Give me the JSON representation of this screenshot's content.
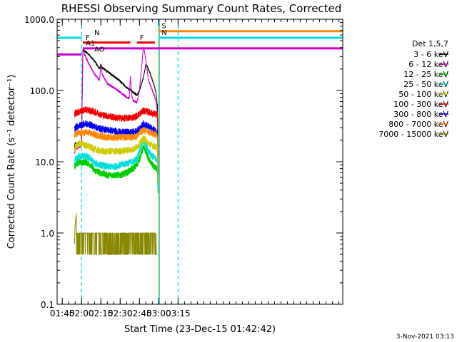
{
  "chart_data": {
    "type": "line",
    "title": "RHESSI Observing Summary Count Rates, Corrected",
    "xlabel": "Start Time (23-Dec-15 01:42:42)",
    "ylabel": "Corrected Count Rate (s⁻¹ detector⁻¹)",
    "yscale": "log",
    "ylim": [
      0.1,
      1000
    ],
    "xlim_minutes": [
      101,
      323
    ],
    "x_ticks": [
      {
        "label": "01:45",
        "t": 105
      },
      {
        "label": "02:00",
        "t": 120
      },
      {
        "label": "02:15",
        "t": 135
      },
      {
        "label": "02:30",
        "t": 150
      },
      {
        "label": "02:45",
        "t": 165
      },
      {
        "label": "03:00",
        "t": 180
      },
      {
        "label": "03:15",
        "t": 195
      }
    ],
    "y_ticks": [
      {
        "label": "0.1",
        "v": 0.1
      },
      {
        "label": "1.0",
        "v": 1
      },
      {
        "label": "10.0",
        "v": 10
      },
      {
        "label": "100.0",
        "v": 100
      },
      {
        "label": "1000.0",
        "v": 1000
      }
    ],
    "legend_title": "Det 1,5,7",
    "legend_position": "right",
    "series": [
      {
        "name": "3 - 6 keV",
        "color": "#000000",
        "x": [
          114.5,
          115,
          120,
          121,
          122,
          125,
          130,
          134,
          135,
          136,
          140,
          145,
          150,
          155,
          160,
          163,
          165,
          168,
          170,
          171,
          173,
          175,
          177,
          178,
          179,
          179.5
        ],
        "y": [
          16,
          18,
          18,
          380,
          360,
          330,
          260,
          200,
          230,
          210,
          185,
          160,
          135,
          110,
          95,
          85,
          100,
          150,
          230,
          220,
          180,
          140,
          110,
          90,
          60,
          5
        ]
      },
      {
        "name": "6 - 12 keV",
        "color": "#cc00cc",
        "x": [
          114.5,
          115,
          120,
          121,
          122,
          125,
          130,
          134,
          135,
          136,
          140,
          145,
          150,
          155,
          157,
          158,
          159,
          160,
          163,
          165,
          167,
          168,
          169,
          170,
          172,
          175,
          177,
          178,
          179,
          179.5
        ],
        "y": [
          13,
          15,
          17,
          370,
          330,
          250,
          170,
          140,
          220,
          170,
          125,
          110,
          95,
          80,
          78,
          160,
          85,
          72,
          68,
          100,
          250,
          400,
          350,
          260,
          140,
          100,
          80,
          65,
          45,
          4
        ]
      },
      {
        "name": "12 - 25 keV",
        "color": "#00cc00",
        "x": [
          114.5,
          115,
          118,
          120,
          123,
          127,
          130,
          135,
          140,
          145,
          150,
          155,
          160,
          163,
          165,
          167,
          168,
          170,
          172,
          175,
          178,
          179,
          179.5
        ],
        "y": [
          8,
          9,
          10,
          9.5,
          10,
          9,
          7.5,
          7,
          6.5,
          6.5,
          6.5,
          7,
          8,
          9,
          11,
          14,
          16,
          14,
          11,
          9,
          8,
          7.5,
          3
        ]
      },
      {
        "name": "25 - 50 keV",
        "color": "#00dddd",
        "x": [
          114.5,
          115,
          118,
          120,
          123,
          127,
          130,
          135,
          140,
          145,
          150,
          155,
          160,
          163,
          165,
          167,
          168,
          170,
          172,
          175,
          178,
          179,
          179.5
        ],
        "y": [
          9,
          10.5,
          12,
          12,
          12,
          11,
          9.5,
          9,
          8.5,
          8.5,
          9,
          9.5,
          10,
          11,
          14,
          18,
          20,
          17,
          14,
          12,
          11,
          10,
          4
        ]
      },
      {
        "name": "50 - 100 keV",
        "color": "#cccc00",
        "x": [
          114.5,
          115,
          118,
          120,
          123,
          127,
          130,
          135,
          140,
          145,
          150,
          155,
          160,
          163,
          165,
          167,
          168,
          170,
          172,
          175,
          178,
          179,
          179.5
        ],
        "y": [
          15,
          16,
          18,
          18,
          17,
          16,
          15,
          14,
          14,
          14,
          14,
          14.5,
          15,
          16,
          18,
          20,
          21,
          20,
          18,
          17,
          16,
          15,
          5
        ]
      },
      {
        "name": "100 - 300 keV",
        "color": "#ee0000",
        "x": [
          114.5,
          115,
          118,
          120,
          123,
          127,
          130,
          135,
          140,
          145,
          150,
          155,
          160,
          163,
          165,
          167,
          168,
          170,
          172,
          175,
          178,
          179,
          179.5
        ],
        "y": [
          45,
          48,
          50,
          52,
          54,
          52,
          50,
          46,
          44,
          42,
          41,
          41,
          42,
          44,
          47,
          50,
          52,
          51,
          50,
          48,
          46,
          45,
          20
        ]
      },
      {
        "name": "300 - 800 keV",
        "color": "#0000ee",
        "x": [
          114.5,
          115,
          118,
          120,
          123,
          127,
          130,
          135,
          140,
          145,
          150,
          155,
          160,
          163,
          165,
          167,
          168,
          170,
          172,
          175,
          178,
          179,
          179.5
        ],
        "y": [
          28,
          30,
          32,
          33,
          34,
          33,
          31,
          29,
          28,
          27,
          26,
          26,
          26,
          27,
          29,
          32,
          34,
          33,
          31,
          29,
          27,
          26,
          12
        ]
      },
      {
        "name": "800 - 7000 keV",
        "color": "#ff8800",
        "x": [
          114.5,
          115,
          118,
          120,
          123,
          127,
          130,
          135,
          140,
          145,
          150,
          155,
          160,
          163,
          165,
          167,
          168,
          170,
          172,
          175,
          178,
          179,
          179.5
        ],
        "y": [
          23,
          24,
          25,
          25,
          26,
          25,
          24,
          23,
          22,
          22,
          22,
          22,
          22,
          23,
          25,
          27,
          28,
          27,
          26,
          25,
          24,
          23,
          10
        ]
      },
      {
        "name": "7000 - 15000 keV",
        "color": "#888800",
        "x": [
          114.5,
          115,
          116,
          117,
          118,
          119,
          120,
          122,
          125,
          130,
          135,
          140,
          145,
          150,
          152,
          155,
          160,
          165,
          168,
          170,
          172,
          175,
          178,
          179
        ],
        "y": [
          0.7,
          1.3,
          2.0,
          1.2,
          0.9,
          1.0,
          1.0,
          0.9,
          0.8,
          0.7,
          0.55,
          0.5,
          0.5,
          0.5,
          0.8,
          0.9,
          0.8,
          0.85,
          0.9,
          1.0,
          0.8,
          0.75,
          0.6,
          0.5
        ]
      }
    ],
    "spans": [
      {
        "label": "N",
        "color": "#00dddd",
        "start": 101,
        "end": 120,
        "level": 550
      },
      {
        "label": "N",
        "color": "#00dddd",
        "start": 180,
        "end": 323,
        "level": 550
      },
      {
        "label": "F",
        "color": "#ee0000",
        "start": 121,
        "end": 158,
        "level": 470
      },
      {
        "label": "F",
        "color": "#ee0000",
        "start": 163,
        "end": 177,
        "level": 470
      },
      {
        "label": "AO",
        "color": "#cc00cc",
        "start": 101,
        "end": 120,
        "level": 320
      },
      {
        "label": "A1",
        "color": "#cc00cc",
        "start": 121,
        "end": 323,
        "level": 390
      },
      {
        "label": "S",
        "color": "#ff8800",
        "start": 180,
        "end": 323,
        "level": 680
      }
    ],
    "markers": [
      {
        "t": 120,
        "color": "#00dddd",
        "style": "dashed"
      },
      {
        "t": 195,
        "color": "#00dddd",
        "style": "dashed"
      },
      {
        "t": 180,
        "color": "#ff8800",
        "style": "solid"
      },
      {
        "t": 180.5,
        "color": "#00dddd",
        "style": "solid"
      }
    ],
    "grid": false,
    "footer_date": "3-Nov-2021 03:13"
  }
}
